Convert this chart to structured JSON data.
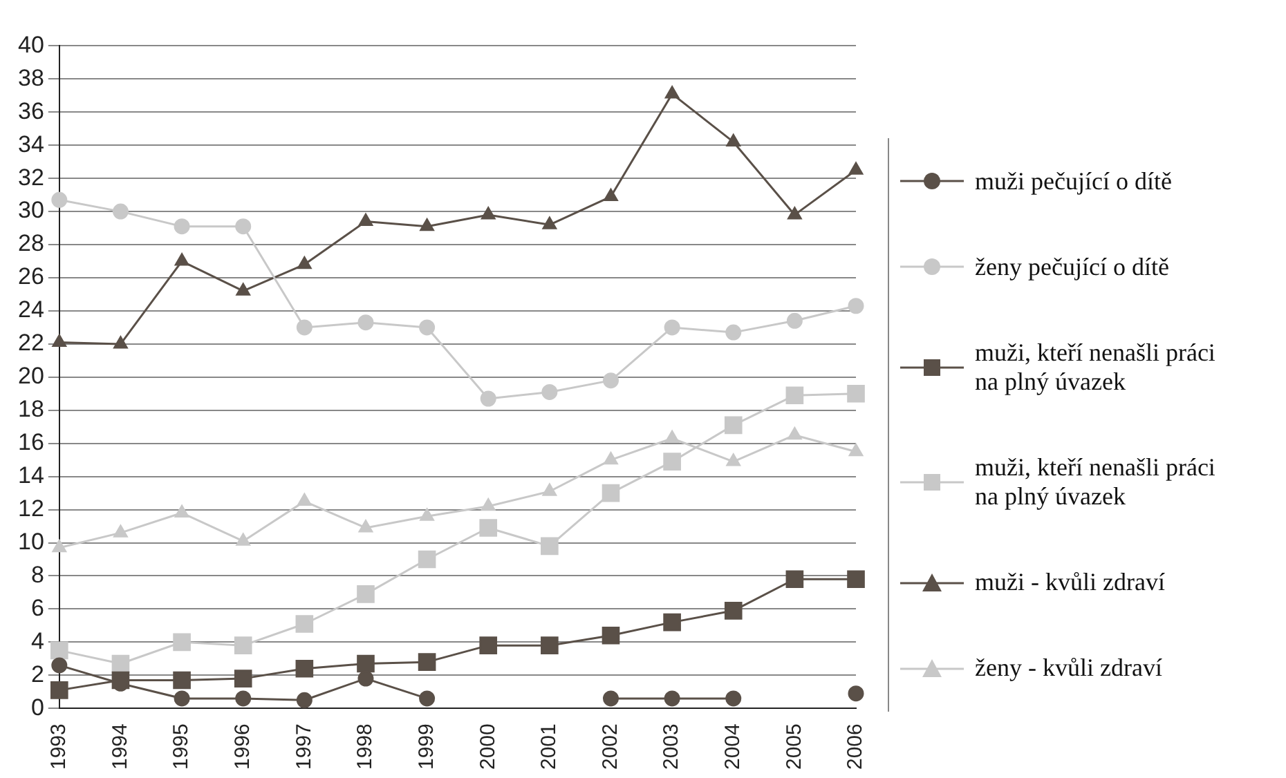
{
  "chart_data": {
    "type": "line",
    "categories": [
      "1993",
      "1994",
      "1995",
      "1996",
      "1997",
      "1998",
      "1999",
      "2000",
      "2001",
      "2002",
      "2003",
      "2004",
      "2005",
      "2006"
    ],
    "ylim": [
      0,
      40
    ],
    "yticks": [
      0,
      2,
      4,
      6,
      8,
      10,
      12,
      14,
      16,
      18,
      20,
      22,
      24,
      26,
      28,
      30,
      32,
      34,
      36,
      38,
      40
    ],
    "grid": "y",
    "legend": "right",
    "line_style": "solid",
    "series": [
      {
        "name": "muži pečující o dítě",
        "color": "#5a5048",
        "marker": "circle",
        "values": [
          2.6,
          1.5,
          0.6,
          0.6,
          0.5,
          1.8,
          0.6,
          null,
          null,
          0.6,
          0.6,
          0.6,
          null,
          0.9
        ]
      },
      {
        "name": "ženy pečující o dítě",
        "color": "#c8c8c8",
        "marker": "circle",
        "values": [
          30.7,
          30.0,
          29.1,
          29.1,
          23.0,
          23.3,
          23.0,
          18.7,
          19.1,
          19.8,
          23.0,
          22.7,
          23.4,
          24.3
        ]
      },
      {
        "name": "muži, kteří nenašli práci na plný úvazek",
        "color": "#5a5048",
        "marker": "square",
        "values": [
          1.1,
          1.7,
          1.7,
          1.8,
          2.4,
          2.7,
          2.8,
          3.8,
          3.8,
          4.4,
          5.2,
          5.9,
          7.8,
          7.8
        ]
      },
      {
        "name": "muži, kteří nenašli práci na plný úvazek",
        "color": "#c8c8c8",
        "marker": "square",
        "values": [
          3.5,
          2.7,
          4.0,
          3.8,
          5.1,
          6.9,
          9.0,
          10.9,
          9.8,
          13.0,
          14.9,
          17.1,
          18.9,
          19.0
        ]
      },
      {
        "name": "muži - kvůli zdraví",
        "color": "#5a5048",
        "marker": "triangle",
        "values": [
          22.1,
          22.0,
          27.0,
          25.2,
          26.8,
          29.4,
          29.1,
          29.8,
          29.2,
          30.9,
          37.1,
          34.2,
          29.8,
          32.5
        ]
      },
      {
        "name": "ženy - kvůli zdraví",
        "color": "#c8c8c8",
        "marker": "triangle",
        "values": [
          9.7,
          10.6,
          11.8,
          10.1,
          12.5,
          10.9,
          11.6,
          12.2,
          13.1,
          15.0,
          16.3,
          14.9,
          16.5,
          15.5
        ]
      }
    ]
  }
}
